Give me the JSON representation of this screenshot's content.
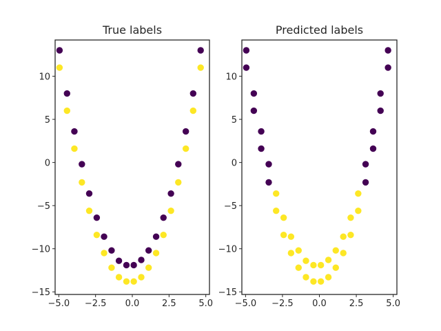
{
  "colors": {
    "class0": "#440154",
    "class1": "#fde725",
    "axes": "#262626"
  },
  "chart_data": [
    {
      "type": "scatter",
      "title": "True labels",
      "xlabel": "",
      "ylabel": "",
      "xlim": [
        -5.25,
        5.25
      ],
      "ylim": [
        -15.3,
        14.2
      ],
      "xticks": [
        -5.0,
        -2.5,
        0.0,
        2.5,
        5.0
      ],
      "xtick_labels": [
        "−5.0",
        "−2.5",
        "0.0",
        "2.5",
        "5.0"
      ],
      "yticks": [
        -15,
        -10,
        -5,
        0,
        5,
        10
      ],
      "ytick_labels": [
        "−15",
        "−10",
        "−5",
        "0",
        "5",
        "10"
      ],
      "grid": false,
      "series": [
        {
          "label_value": 0,
          "color": "#440154",
          "points": [
            [
              -4.95,
              13.0
            ],
            [
              -4.44,
              8.0
            ],
            [
              -3.94,
              3.6
            ],
            [
              -3.43,
              -0.2
            ],
            [
              -2.93,
              -3.6
            ],
            [
              -2.42,
              -6.4
            ],
            [
              -1.92,
              -8.6
            ],
            [
              -1.41,
              -10.2
            ],
            [
              -0.91,
              -11.4
            ],
            [
              -0.4,
              -11.9
            ],
            [
              0.1,
              -11.9
            ],
            [
              0.61,
              -11.3
            ],
            [
              1.11,
              -10.2
            ],
            [
              1.62,
              -8.6
            ],
            [
              2.12,
              -6.4
            ],
            [
              2.63,
              -3.6
            ],
            [
              3.13,
              -0.2
            ],
            [
              3.64,
              3.6
            ],
            [
              4.14,
              8.0
            ],
            [
              4.65,
              13.0
            ]
          ]
        },
        {
          "label_value": 1,
          "color": "#fde725",
          "points": [
            [
              -4.95,
              11.0
            ],
            [
              -4.44,
              6.0
            ],
            [
              -3.94,
              1.6
            ],
            [
              -3.43,
              -2.3
            ],
            [
              -2.93,
              -5.6
            ],
            [
              -2.42,
              -8.4
            ],
            [
              -1.92,
              -10.5
            ],
            [
              -1.41,
              -12.2
            ],
            [
              -0.91,
              -13.3
            ],
            [
              -0.4,
              -13.8
            ],
            [
              0.1,
              -13.8
            ],
            [
              0.61,
              -13.3
            ],
            [
              1.11,
              -12.2
            ],
            [
              1.62,
              -10.5
            ],
            [
              2.12,
              -8.4
            ],
            [
              2.63,
              -5.6
            ],
            [
              3.13,
              -2.3
            ],
            [
              3.64,
              1.6
            ],
            [
              4.14,
              6.0
            ],
            [
              4.65,
              11.0
            ]
          ]
        }
      ]
    },
    {
      "type": "scatter",
      "title": "Predicted labels",
      "xlabel": "",
      "ylabel": "",
      "xlim": [
        -5.25,
        5.25
      ],
      "ylim": [
        -15.3,
        14.2
      ],
      "xticks": [
        -5.0,
        -2.5,
        0.0,
        2.5,
        5.0
      ],
      "xtick_labels": [
        "−5.0",
        "−2.5",
        "0.0",
        "2.5",
        "5.0"
      ],
      "yticks": [
        -15,
        -10,
        -5,
        0,
        5,
        10
      ],
      "ytick_labels": [
        "−15",
        "−10",
        "−5",
        "0",
        "5",
        "10"
      ],
      "grid": false,
      "series": [
        {
          "label_value": 0,
          "color": "#440154",
          "points": [
            [
              -4.95,
              13.0
            ],
            [
              -4.95,
              11.0
            ],
            [
              -4.44,
              8.0
            ],
            [
              -4.44,
              6.0
            ],
            [
              -3.94,
              3.6
            ],
            [
              -3.94,
              1.6
            ],
            [
              -3.43,
              -0.2
            ],
            [
              -3.43,
              -2.3
            ],
            [
              3.13,
              -0.2
            ],
            [
              3.13,
              -2.3
            ],
            [
              3.64,
              3.6
            ],
            [
              3.64,
              1.6
            ],
            [
              4.14,
              8.0
            ],
            [
              4.14,
              6.0
            ],
            [
              4.65,
              13.0
            ],
            [
              4.65,
              11.0
            ]
          ]
        },
        {
          "label_value": 1,
          "color": "#fde725",
          "points": [
            [
              -2.93,
              -3.6
            ],
            [
              -2.93,
              -5.6
            ],
            [
              -2.42,
              -6.4
            ],
            [
              -2.42,
              -8.4
            ],
            [
              -1.92,
              -8.6
            ],
            [
              -1.92,
              -10.5
            ],
            [
              -1.41,
              -10.2
            ],
            [
              -1.41,
              -12.2
            ],
            [
              -0.91,
              -11.4
            ],
            [
              -0.91,
              -13.3
            ],
            [
              -0.4,
              -11.9
            ],
            [
              -0.4,
              -13.8
            ],
            [
              0.1,
              -11.9
            ],
            [
              0.1,
              -13.8
            ],
            [
              0.61,
              -11.3
            ],
            [
              0.61,
              -13.3
            ],
            [
              1.11,
              -10.2
            ],
            [
              1.11,
              -12.2
            ],
            [
              1.62,
              -8.6
            ],
            [
              1.62,
              -10.5
            ],
            [
              2.12,
              -6.4
            ],
            [
              2.12,
              -8.4
            ],
            [
              2.63,
              -3.6
            ],
            [
              2.63,
              -5.6
            ]
          ]
        }
      ]
    }
  ]
}
